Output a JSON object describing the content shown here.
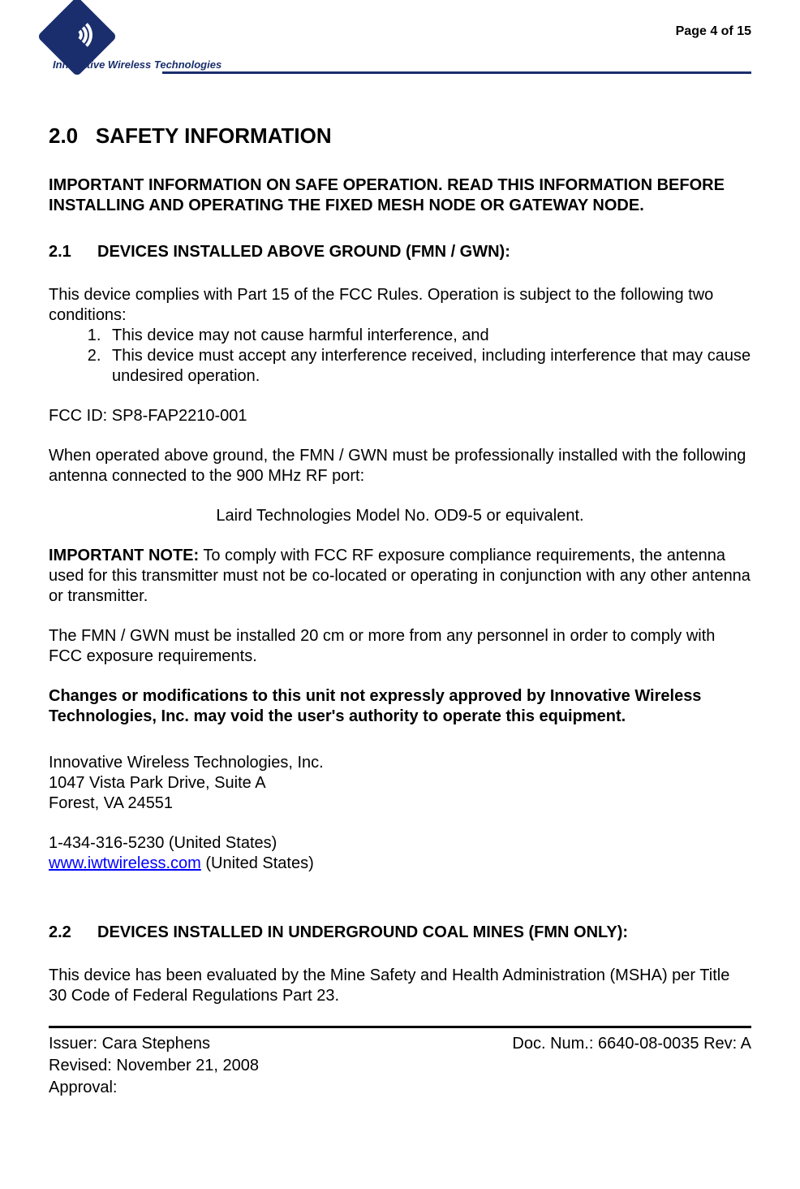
{
  "header": {
    "logo_text": "Innovative Wireless Technologies",
    "page_number": "Page 4 of 15"
  },
  "section": {
    "number": "2.0",
    "title": "SAFETY INFORMATION"
  },
  "intro_bold": "IMPORTANT INFORMATION ON SAFE OPERATION.  READ THIS INFORMATION BEFORE INSTALLING AND OPERATING THE FIXED MESH NODE OR GATEWAY NODE.",
  "subsection1": {
    "number": "2.1",
    "title": "DEVICES INSTALLED ABOVE GROUND (FMN / GWN):"
  },
  "compliance_intro": "This device complies with Part 15 of the FCC Rules.  Operation is subject to the following two conditions:",
  "compliance_list": {
    "item1": "This device may not cause harmful interference, and",
    "item2": "This device must accept any interference received, including interference that may cause undesired operation."
  },
  "fcc_id": "FCC ID:  SP8-FAP2210-001",
  "antenna_para": "When operated above ground, the FMN / GWN must be professionally installed with the following antenna connected to the 900 MHz RF port:",
  "antenna_model": "Laird Technologies Model No. OD9-5 or equivalent.",
  "important_note_label": "IMPORTANT NOTE:",
  "important_note_text": "  To comply with FCC RF exposure compliance requirements, the antenna used for this transmitter must not be co-located or operating in conjunction with any other antenna or transmitter.",
  "distance_para": "The FMN / GWN must be installed 20 cm or more from any personnel in order to comply with FCC exposure requirements.",
  "changes_para": "Changes or modifications to this unit not expressly approved by Innovative Wireless Technologies, Inc. may void the user's authority to operate this equipment.",
  "address": {
    "line1": "Innovative Wireless Technologies, Inc.",
    "line2": "1047 Vista Park Drive, Suite A",
    "line3": "Forest, VA 24551"
  },
  "contact": {
    "phone": "1-434-316-5230 (United States)",
    "url": "www.iwtwireless.com",
    "url_suffix": " (United States)"
  },
  "subsection2": {
    "number": "2.2",
    "title": "DEVICES INSTALLED IN UNDERGROUND COAL MINES (FMN ONLY):"
  },
  "msha_para": "This device has been evaluated by the Mine Safety and Health Administration (MSHA) per Title 30 Code of Federal Regulations Part 23.",
  "footer": {
    "issuer": "Issuer: Cara Stephens",
    "docnum": "Doc. Num.: 6640-08-0035 Rev: A",
    "revised": "Revised: November 21, 2008",
    "approval": "Approval:"
  }
}
